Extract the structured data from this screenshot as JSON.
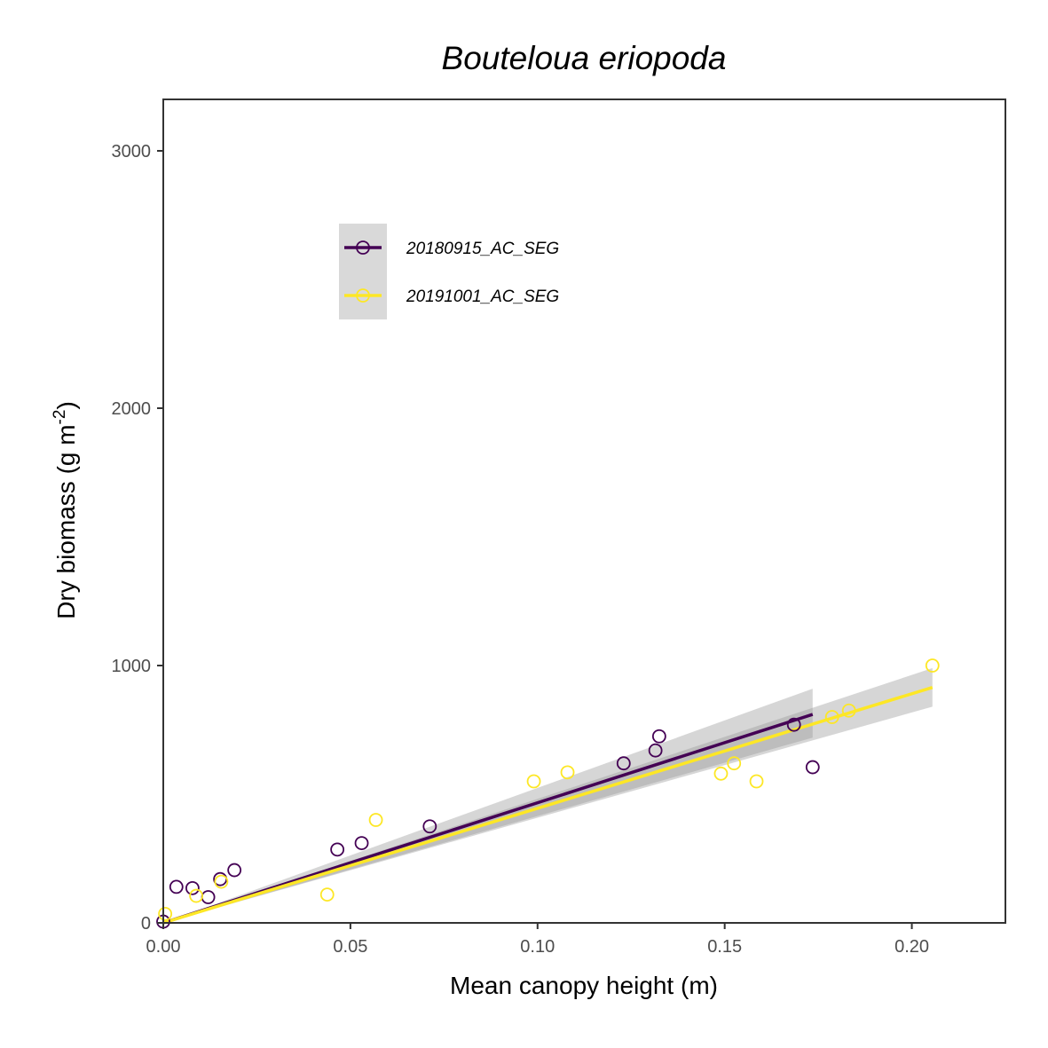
{
  "chart_data": {
    "type": "scatter",
    "title": "Bouteloua eriopoda",
    "xlabel": "Mean canopy height (m)",
    "ylabel_main": "Dry biomass (g m",
    "ylabel_sup": "-2",
    "ylabel_close": ")",
    "xlim": [
      0,
      0.225
    ],
    "ylim": [
      0,
      3200
    ],
    "x_ticks": [
      0.0,
      0.05,
      0.1,
      0.15,
      0.2
    ],
    "x_tick_labels": [
      "0.00",
      "0.05",
      "0.10",
      "0.15",
      "0.20"
    ],
    "y_ticks": [
      0,
      1000,
      2000,
      3000
    ],
    "y_tick_labels": [
      "0",
      "1000",
      "2000",
      "3000"
    ],
    "grid": false,
    "legend_position": "top-left",
    "series": [
      {
        "name": "20180915_AC_SEG",
        "color": "#440154",
        "points": [
          [
            0.0,
            5
          ],
          [
            0.0035,
            140
          ],
          [
            0.0078,
            135
          ],
          [
            0.012,
            100
          ],
          [
            0.0152,
            170
          ],
          [
            0.019,
            205
          ],
          [
            0.0465,
            285
          ],
          [
            0.053,
            310
          ],
          [
            0.0712,
            375
          ],
          [
            0.123,
            620
          ],
          [
            0.1315,
            670
          ],
          [
            0.1325,
            725
          ],
          [
            0.1685,
            770
          ],
          [
            0.1735,
            605
          ]
        ],
        "fit": {
          "x0": 0.0,
          "y0": 0,
          "x1": 0.1735,
          "y1": 810
        },
        "band": {
          "lower_at_end": 720,
          "upper_at_end": 910
        }
      },
      {
        "name": "20191001_AC_SEG",
        "color": "#FDE725",
        "points": [
          [
            0.0005,
            35
          ],
          [
            0.0088,
            105
          ],
          [
            0.0155,
            160
          ],
          [
            0.0438,
            110
          ],
          [
            0.0568,
            400
          ],
          [
            0.099,
            550
          ],
          [
            0.108,
            585
          ],
          [
            0.149,
            580
          ],
          [
            0.1525,
            620
          ],
          [
            0.1585,
            550
          ],
          [
            0.1787,
            800
          ],
          [
            0.1832,
            825
          ],
          [
            0.2055,
            1000
          ]
        ],
        "fit": {
          "x0": 0.0,
          "y0": 0,
          "x1": 0.2055,
          "y1": 915
        },
        "band": {
          "lower_at_end": 840,
          "upper_at_end": 990
        }
      }
    ]
  }
}
